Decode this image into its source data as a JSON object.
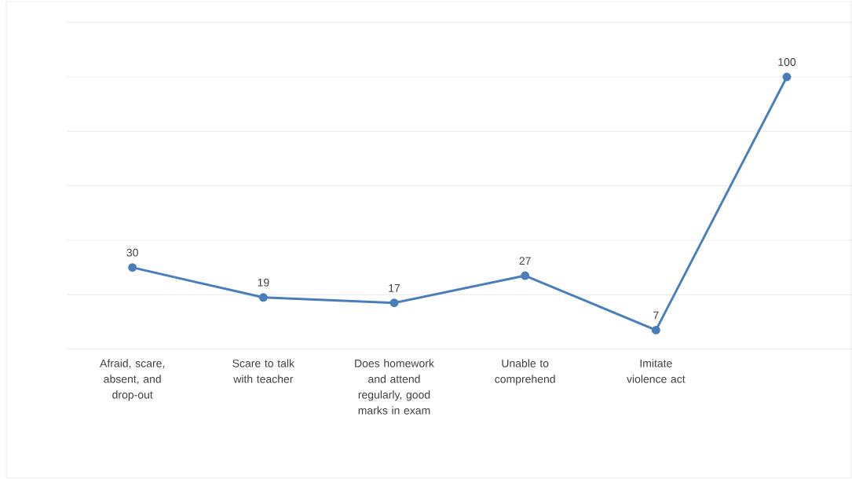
{
  "chart_data": {
    "type": "line",
    "categories": [
      "Afraid, scare, absent, and drop-out",
      "Scare to talk with teacher",
      "Does homework and attend regularly, good marks in exam",
      "Unable to comprehend",
      "Imitate violence act",
      null
    ],
    "values": [
      30,
      19,
      17,
      27,
      7,
      100
    ],
    "color": "#4a7ebb",
    "ylim": [
      0,
      120
    ],
    "yticks": [
      {
        "value": 0,
        "label": null
      },
      {
        "value": 20,
        "label": null
      },
      {
        "value": 40,
        "label": null
      },
      {
        "value": 60,
        "label": null
      },
      {
        "value": 80,
        "label": null
      },
      {
        "value": 100,
        "label": null
      },
      {
        "value": 120,
        "label": null
      }
    ],
    "tick_labels": "x",
    "grid": "y",
    "marker": "circle",
    "line_style": "solid",
    "data_labels": true
  }
}
